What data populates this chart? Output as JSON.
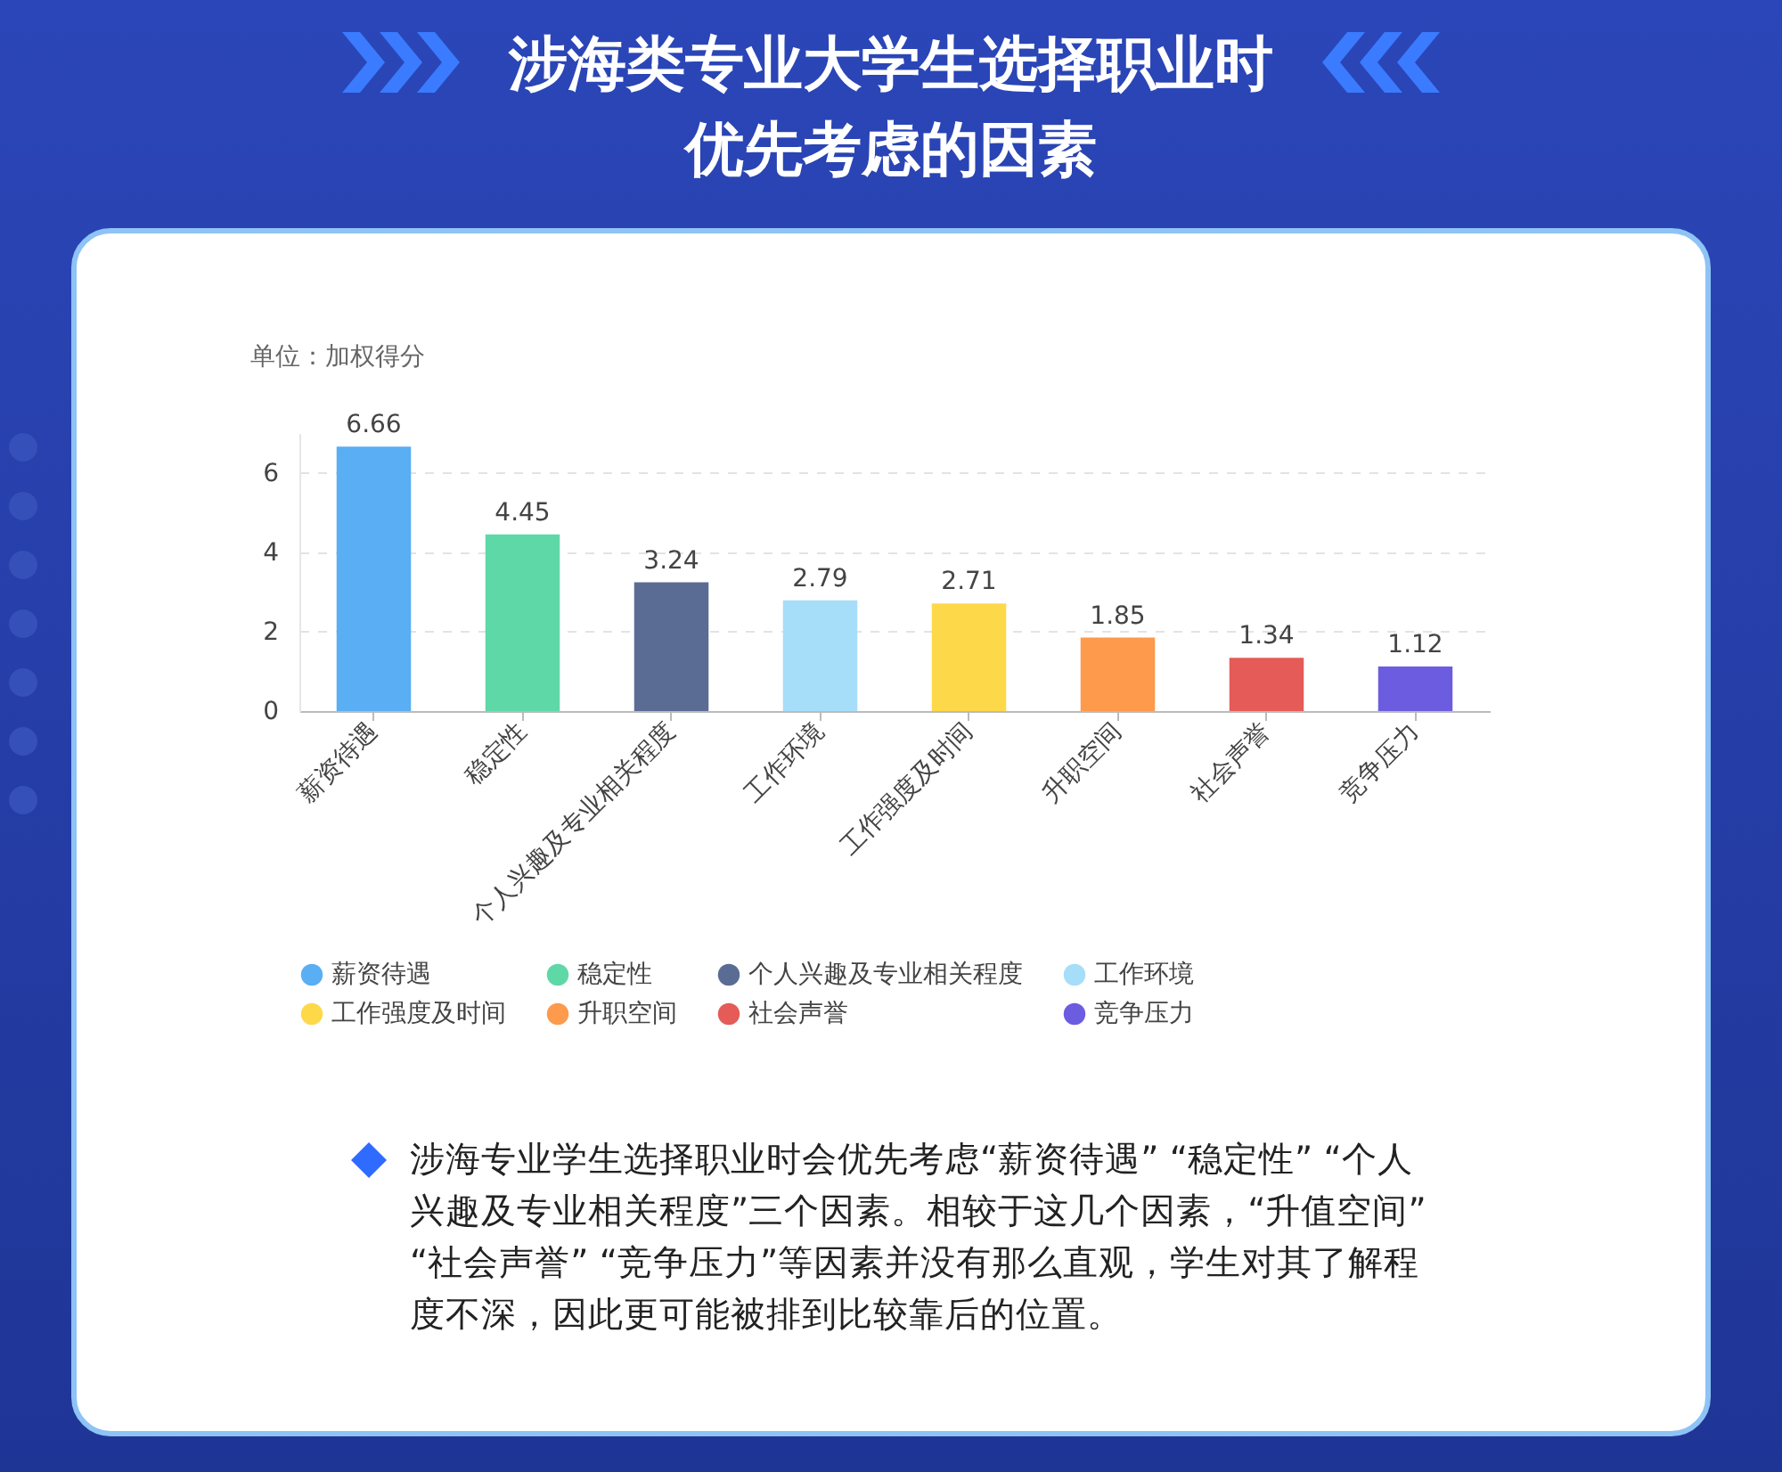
{
  "chart_data": {
    "type": "bar",
    "title": "涉海类专业大学生选择职业时优先考虑的因素",
    "ylabel": "单位：加权得分",
    "categories": [
      "薪资待遇",
      "稳定性",
      "个人兴趣及专业相关程度",
      "工作环境",
      "工作强度及时间",
      "升职空间",
      "社会声誉",
      "竞争压力"
    ],
    "stacked": true,
    "series": [
      {
        "name": "薪资待遇",
        "color": "#5aaef3",
        "values": [
          6.66,
          null,
          null,
          null,
          null,
          null,
          null,
          null
        ]
      },
      {
        "name": "稳定性",
        "color": "#5fd8a8",
        "values": [
          null,
          4.45,
          null,
          null,
          null,
          null,
          null,
          null
        ]
      },
      {
        "name": "个人兴趣及专业相关程度",
        "color": "#5a6c94",
        "values": [
          null,
          null,
          3.24,
          null,
          null,
          null,
          null,
          null
        ]
      },
      {
        "name": "工作环境",
        "color": "#a6ddf9",
        "values": [
          null,
          null,
          null,
          2.79,
          null,
          null,
          null,
          null
        ]
      },
      {
        "name": "工作强度及时间",
        "color": "#fdd94a",
        "values": [
          null,
          null,
          null,
          null,
          2.71,
          null,
          null,
          null
        ]
      },
      {
        "name": "升职空间",
        "color": "#fd9a4c",
        "values": [
          null,
          null,
          null,
          null,
          null,
          1.85,
          null,
          null
        ]
      },
      {
        "name": "社会声誉",
        "color": "#e45b58",
        "values": [
          null,
          null,
          null,
          null,
          null,
          null,
          1.34,
          null
        ]
      },
      {
        "name": "竞争压力",
        "color": "#6c5ce0",
        "values": [
          null,
          null,
          null,
          null,
          null,
          null,
          null,
          1.12
        ]
      }
    ],
    "ylim": [
      0,
      7
    ],
    "yticks": [
      0,
      2,
      4,
      6
    ],
    "grid": "y",
    "data_labels": true,
    "legend": "bottom",
    "annotations": [
      "涉海专业学生选择职业时会优先考虑“薪资待遇” “稳定性” “个人兴趣及专业相关程度”三个因素。相较于这几个因素，“升值空间” “社会声誉” “竞争压力”等因素并没有那么直观，学生对其了解程度不深，因此更可能被排到比较靠后的位置。"
    ]
  }
}
